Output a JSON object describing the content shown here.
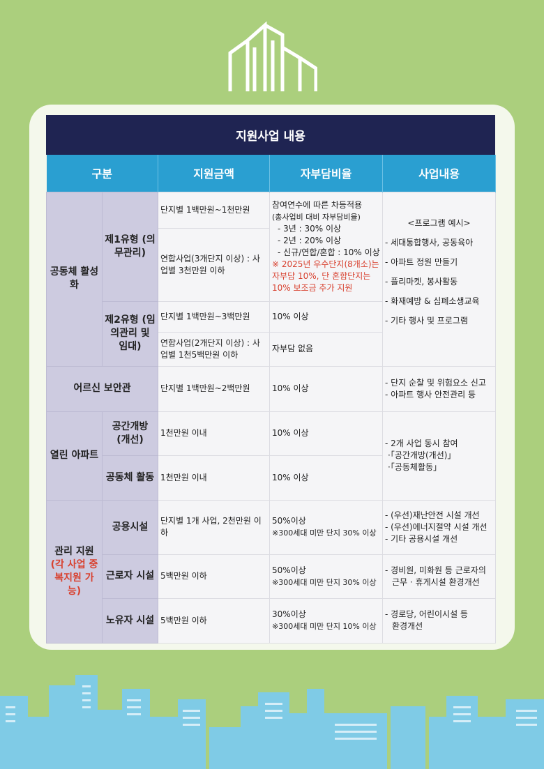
{
  "title": "지원사업 내용",
  "headers": [
    "구분",
    "지원금액",
    "자부담비율",
    "사업내용"
  ],
  "rows": {
    "g1": {
      "cat": "공동체 활성화",
      "t1": "제1유형 (의무관리)",
      "t2": "제2유형 (임의관리 및 임대)",
      "a1": "단지별 1백만원~1천만원",
      "a2": "연합사업(3개단지 이상) : 사업별 3천만원 이하",
      "a3": "단지별 1백만원~3백만원",
      "a4": "연합사업(2개단지 이상) : 사업별 1천5백만원 이하",
      "r1": [
        "참여연수에 따른 차등적용",
        "(총사업비 대비 자부담비율)",
        "- 3년 : 30% 이상",
        "- 2년 : 20% 이상",
        "- 신규/연합/혼합 : 10% 이상"
      ],
      "r1_note": "※ 2025년 우수단지(8개소)는 자부담 10%, 단 혼합단지는 10% 보조금 추가 지원",
      "r3": "10% 이상",
      "r4": "자부담 없음",
      "c": [
        "<프로그램 예시>",
        "- 세대통합행사, 공동육아",
        "- 아파트 정원 만들기",
        "- 플리마켓, 봉사활동",
        "- 화재예방 & 심폐소생교육",
        "- 기타 행사 및 프로그램"
      ]
    },
    "g2": {
      "cat": "어르신 보안관",
      "a": "단지별 1백만원~2백만원",
      "r": "10% 이상",
      "c": [
        "- 단지 순찰 및 위험요소 신고",
        "- 아파트 행사 안전관리 등"
      ]
    },
    "g3": {
      "cat": "열린 아파트",
      "t1": "공간개방 (개선)",
      "t2": "공동체 활동",
      "a1": "1천만원 이내",
      "a2": "1천만원 이내",
      "r1": "10% 이상",
      "r2": "10% 이상",
      "c": [
        "- 2개 사업 동시 참여",
        "·「공간개방(개선)」",
        "·「공동체활동」"
      ]
    },
    "g4": {
      "cat": "관리 지원",
      "cat_note": "(각 사업 중복지원 가능)",
      "t1": "공용시설",
      "t2": "근로자 시설",
      "t3": "노유자 시설",
      "a1": "단지별 1개 사업, 2천만원 이하",
      "a2": "5백만원 이하",
      "a3": "5백만원 이하",
      "r1": [
        "50%이상",
        "※300세대 미만 단지 30% 이상"
      ],
      "r2": [
        "50%이상",
        "※300세대 미만 단지 30% 이상"
      ],
      "r3": [
        "30%이상",
        "※300세대 미만 단지 10% 이상"
      ],
      "c1": [
        "- (우선)재난안전 시설 개선",
        "- (우선)에너지절약 시설 개선",
        "- 기타 공용시설 개선"
      ],
      "c2": [
        "- 경비원, 미화원 등 근로자의",
        "근무 · 휴게시설 환경개선"
      ],
      "c3": [
        "- 경로당, 어린이시설 등",
        "환경개선"
      ]
    }
  },
  "colors": {
    "background": "#abcf7d",
    "title_bar": "#1f2452",
    "header": "#2a9fd1",
    "category": "#cdcbe0",
    "note": "#d8412f"
  }
}
